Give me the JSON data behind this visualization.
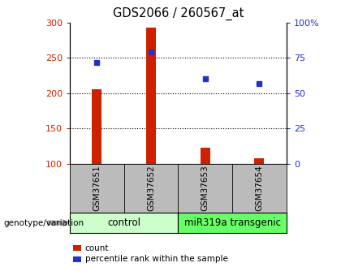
{
  "title": "GDS2066 / 260567_at",
  "samples": [
    "GSM37651",
    "GSM37652",
    "GSM37653",
    "GSM37654"
  ],
  "bar_values": [
    205,
    293,
    123,
    108
  ],
  "dot_values": [
    243,
    258,
    220,
    213
  ],
  "ylim_left": [
    100,
    300
  ],
  "ylim_right": [
    0,
    100
  ],
  "yticks_left": [
    100,
    150,
    200,
    250,
    300
  ],
  "yticks_right": [
    0,
    25,
    50,
    75,
    100
  ],
  "ytick_labels_right": [
    "0",
    "25",
    "50",
    "75",
    "100%"
  ],
  "hlines": [
    150,
    200,
    250
  ],
  "bar_color": "#cc2200",
  "dot_color": "#2233cc",
  "bar_width": 0.18,
  "groups": [
    {
      "label": "control",
      "indices": [
        0,
        1
      ],
      "color": "#ccffcc"
    },
    {
      "label": "miR319a transgenic",
      "indices": [
        2,
        3
      ],
      "color": "#66ff66"
    }
  ],
  "left_tick_color": "#cc2200",
  "right_tick_color": "#2233cc",
  "genotype_label": "genotype/variation",
  "legend_count": "count",
  "legend_percentile": "percentile rank within the sample",
  "label_area_bg": "#bbbbbb",
  "group_label_fontsize": 8.5,
  "title_fontsize": 10.5,
  "sample_fontsize": 7.5,
  "legend_fontsize": 7.5
}
